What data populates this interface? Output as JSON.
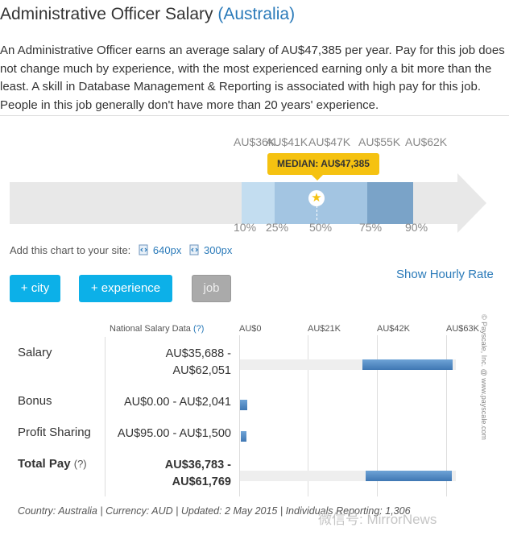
{
  "header": {
    "title": "Administrative Officer Salary",
    "country": "(Australia)",
    "summary": "An Administrative Officer earns an average salary of AU$47,385 per year. Pay for this job does not change much by experience, with the most experienced earning only a bit more than the least. A skill in Database Management & Reporting is associated with high pay for this job. People in this job generally don't have more than 20 years' experience."
  },
  "range_chart": {
    "value_labels": [
      "AU$36K",
      "AU$41K",
      "AU$47K",
      "AU$55K",
      "AU$62K"
    ],
    "percentile_labels": [
      "10%",
      "25%",
      "50%",
      "75%",
      "90%"
    ],
    "median_label": "MEDIAN: AU$47,385",
    "colors": {
      "p10_25": "#c3ddf0",
      "p25_75": "#a3c5e2",
      "p75_90": "#7aa3c8",
      "arrow": "#e8e8e8",
      "median": "#f5c211"
    }
  },
  "embed": {
    "label": "Add this chart to your site:",
    "link1": "640px",
    "link2": "300px",
    "icon": "embed-code-icon"
  },
  "buttons": {
    "city": "+ city",
    "experience": "+ experience",
    "job": "job",
    "hourly": "Show Hourly Rate"
  },
  "table": {
    "header_label": "National Salary Data",
    "header_help": "(?)",
    "axis_labels": [
      "AU$0",
      "AU$21K",
      "AU$42K",
      "AU$63K"
    ],
    "axis_max": 63000,
    "rows": [
      {
        "name": "Salary",
        "value_line1": "AU$35,688 -",
        "value_line2": "AU$62,051",
        "min": 35688,
        "max": 62051
      },
      {
        "name": "Bonus",
        "value_line1": "AU$0.00 - AU$2,041",
        "min": 0,
        "max": 2041
      },
      {
        "name": "Profit Sharing",
        "value_line1": "AU$95.00 - AU$1,500",
        "min": 95,
        "max": 1500
      },
      {
        "name": "Total Pay",
        "help": "(?)",
        "value_line1": "AU$36,783 -",
        "value_line2": "AU$61,769",
        "min": 36783,
        "max": 61769
      }
    ]
  },
  "side_credit": "© Payscale, Inc. @ www.payscale.com",
  "footer": "Country: Australia | Currency: AUD | Updated: 2 May 2015 | Individuals Reporting: 1,306",
  "watermark": "微信号: MirrorNews"
}
